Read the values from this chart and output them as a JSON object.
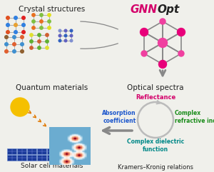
{
  "bg_color": "#f0f0eb",
  "title_gnnopt_gnn": "GNN",
  "title_gnnopt_opt": "Opt",
  "title_crystal": "Crystal structures",
  "title_optical": "Optical spectra",
  "title_quantum": "Quantum materials",
  "title_solar": "Solar cell materials",
  "title_kramers": "Kramers–Kronig relations",
  "label_reflectance": "Reflectance",
  "label_absorption": "Absorption\ncoefficient",
  "label_refractive": "Complex\nrefractive index",
  "label_dielectric": "Complex dielectric\nfunction",
  "color_gnnopt_pink": "#d4006a",
  "color_gnnopt_dark": "#222222",
  "color_reflectance": "#d4006a",
  "color_absorption": "#1a55cc",
  "color_refractive": "#1a8c1a",
  "color_dielectric": "#008888",
  "color_node_bright": "#f040a0",
  "color_node_dark": "#e8007a",
  "color_edge": "#888888",
  "color_arrow": "#888888",
  "color_text": "#222222",
  "color_circle": "#bbbbbb",
  "color_sun": "#f5c000",
  "color_sun_ray": "#e07800",
  "color_solar": "#1a3a99"
}
